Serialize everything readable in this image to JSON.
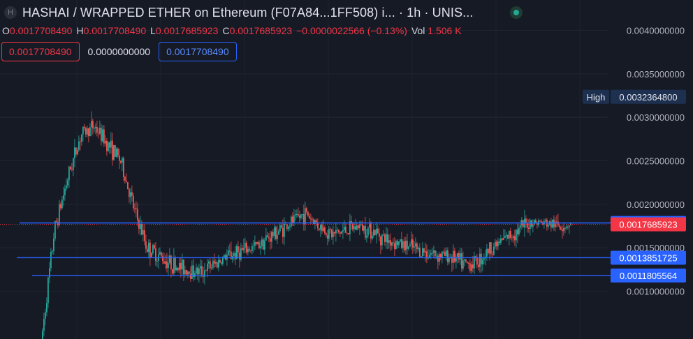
{
  "header": {
    "logo_letter": "H",
    "title": "HASHAI / WRAPPED ETHER on Ethereum (F07A84...1FF508) i...  · 1h · UNIS...",
    "ohlc": {
      "o_label": "O",
      "o_value": "0.0017708490",
      "h_label": "H",
      "h_value": "0.0017708490",
      "l_label": "L",
      "l_value": "0.0017685923",
      "c_label": "C",
      "c_value": "0.0017685923",
      "change": "−0.0000022566 (−0.13%)",
      "vol_label": "Vol",
      "vol_value": "1.506 K"
    },
    "boxes": {
      "red": "0.0017708490",
      "plain": "0.0000000000",
      "blue": "0.0017708490"
    }
  },
  "colors": {
    "background": "#161a25",
    "up": "#26a69a",
    "down": "#ef5350",
    "line": "#2962ff",
    "last_price": "#f23645",
    "high_tag": "#1e3050"
  },
  "chart_data": {
    "type": "candlestick",
    "interval": "1h",
    "yaxis_side": "right",
    "yticks": [
      "0.0040000000",
      "0.0035000000",
      "0.0030000000",
      "0.0025000000",
      "0.0020000000",
      "0.0015000000",
      "0.0010000000"
    ],
    "ytick_values": [
      0.004,
      0.0035,
      0.003,
      0.0025,
      0.002,
      0.0015,
      0.001
    ],
    "ylim": [
      0.00045,
      0.00435
    ],
    "grid": true,
    "price_path": [
      [
        0.0004,
        0.0017,
        0.0023,
        0.0028,
        0.0029,
        0.0027,
        0.0025,
        0.00195,
        0.0015,
        0.0014,
        0.0013,
        0.00125,
        0.00122,
        0.0013,
        0.0014
      ],
      [
        0.00145,
        0.0015,
        0.0016,
        0.0017,
        0.0018,
        0.0019,
        0.00175,
        0.00165,
        0.0017,
        0.00175,
        0.0017,
        0.0016
      ],
      [
        0.00155,
        0.0015,
        0.00145,
        0.00142,
        0.0014,
        0.0013,
        0.00135,
        0.0015,
        0.0016,
        0.0017,
        0.0018,
        0.00178,
        0.00176,
        0.00177
      ]
    ],
    "lines": [
      {
        "label": "0.0017851041",
        "value": 0.0017851041
      },
      {
        "label": "0.0013851725",
        "value": 0.0013851725
      },
      {
        "label": "0.0011805564",
        "value": 0.0011805564
      }
    ],
    "high": {
      "label": "High",
      "value_label": "0.0032364800",
      "value": 0.00323648
    },
    "last_price": {
      "label": "0.0017685923",
      "value": 0.0017685923
    }
  }
}
